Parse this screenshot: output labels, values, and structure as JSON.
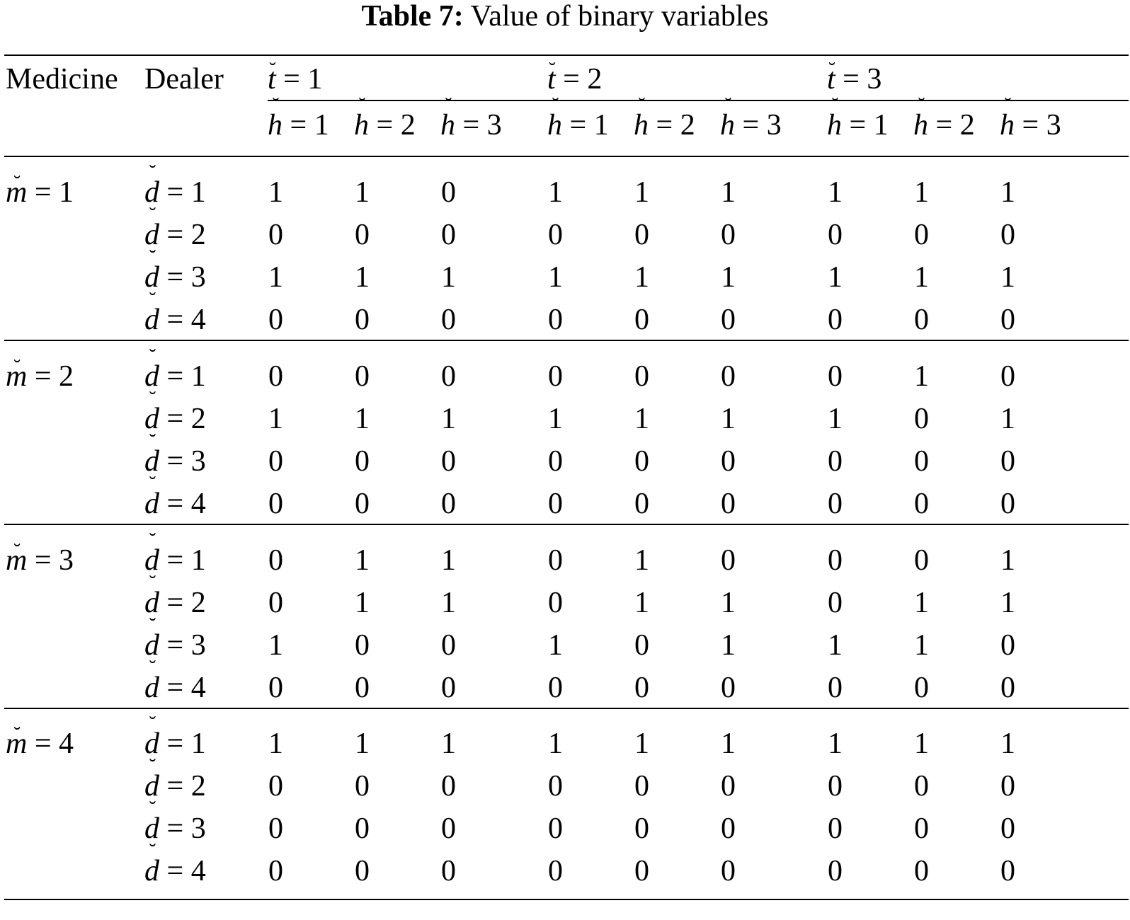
{
  "caption": {
    "label": "Table 7:",
    "title": "Value of binary variables"
  },
  "header": {
    "medicine": "Medicine",
    "dealer": "Dealer",
    "t_var": "t",
    "h_var": "h",
    "eq": " = ",
    "t_groups": [
      "1",
      "2",
      "3"
    ],
    "h_values": [
      "1",
      "2",
      "3"
    ]
  },
  "table": {
    "m_var": "m",
    "d_var": "d",
    "eq": " = ",
    "groups": [
      {
        "m": "1",
        "rows": [
          {
            "d": "1",
            "values": [
              "1",
              "1",
              "0",
              "1",
              "1",
              "1",
              "1",
              "1",
              "1"
            ]
          },
          {
            "d": "2",
            "values": [
              "0",
              "0",
              "0",
              "0",
              "0",
              "0",
              "0",
              "0",
              "0"
            ]
          },
          {
            "d": "3",
            "values": [
              "1",
              "1",
              "1",
              "1",
              "1",
              "1",
              "1",
              "1",
              "1"
            ]
          },
          {
            "d": "4",
            "values": [
              "0",
              "0",
              "0",
              "0",
              "0",
              "0",
              "0",
              "0",
              "0"
            ]
          }
        ]
      },
      {
        "m": "2",
        "rows": [
          {
            "d": "1",
            "values": [
              "0",
              "0",
              "0",
              "0",
              "0",
              "0",
              "0",
              "1",
              "0"
            ]
          },
          {
            "d": "2",
            "values": [
              "1",
              "1",
              "1",
              "1",
              "1",
              "1",
              "1",
              "0",
              "1"
            ]
          },
          {
            "d": "3",
            "values": [
              "0",
              "0",
              "0",
              "0",
              "0",
              "0",
              "0",
              "0",
              "0"
            ]
          },
          {
            "d": "4",
            "values": [
              "0",
              "0",
              "0",
              "0",
              "0",
              "0",
              "0",
              "0",
              "0"
            ]
          }
        ]
      },
      {
        "m": "3",
        "rows": [
          {
            "d": "1",
            "values": [
              "0",
              "1",
              "1",
              "0",
              "1",
              "0",
              "0",
              "0",
              "1"
            ]
          },
          {
            "d": "2",
            "values": [
              "0",
              "1",
              "1",
              "0",
              "1",
              "1",
              "0",
              "1",
              "1"
            ]
          },
          {
            "d": "3",
            "values": [
              "1",
              "0",
              "0",
              "1",
              "0",
              "1",
              "1",
              "1",
              "0"
            ]
          },
          {
            "d": "4",
            "values": [
              "0",
              "0",
              "0",
              "0",
              "0",
              "0",
              "0",
              "0",
              "0"
            ]
          }
        ]
      },
      {
        "m": "4",
        "rows": [
          {
            "d": "1",
            "values": [
              "1",
              "1",
              "1",
              "1",
              "1",
              "1",
              "1",
              "1",
              "1"
            ]
          },
          {
            "d": "2",
            "values": [
              "0",
              "0",
              "0",
              "0",
              "0",
              "0",
              "0",
              "0",
              "0"
            ]
          },
          {
            "d": "3",
            "values": [
              "0",
              "0",
              "0",
              "0",
              "0",
              "0",
              "0",
              "0",
              "0"
            ]
          },
          {
            "d": "4",
            "values": [
              "0",
              "0",
              "0",
              "0",
              "0",
              "0",
              "0",
              "0",
              "0"
            ]
          }
        ]
      }
    ]
  }
}
